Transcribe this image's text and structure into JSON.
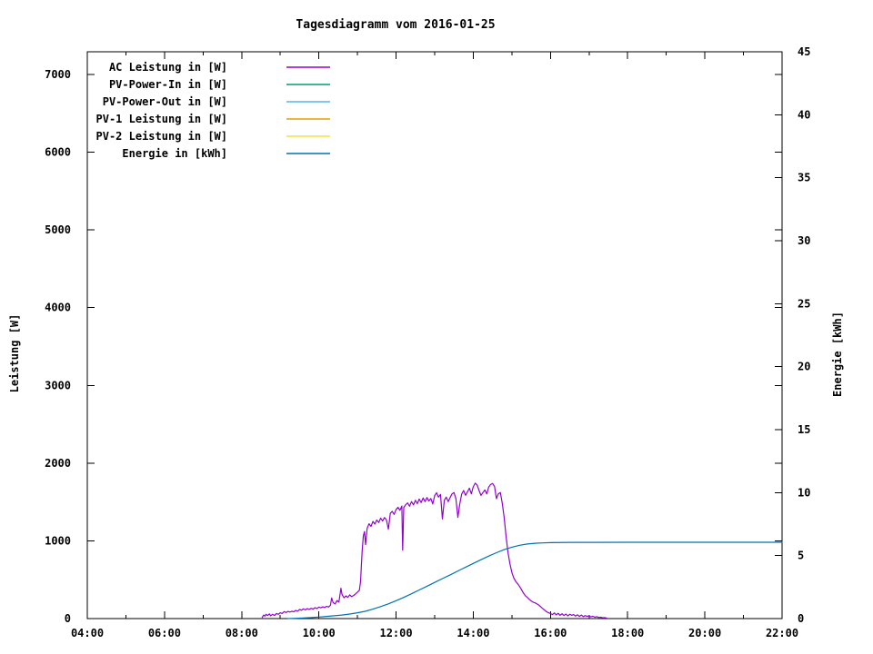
{
  "page": {
    "background": "#ffffff"
  },
  "chart_data": {
    "type": "line",
    "title": "Tagesdiagramm vom 2016-01-25",
    "grid": false,
    "legend_position": "top-left-inside",
    "x_axis": {
      "unit": "time-of-day",
      "range_hours": [
        4,
        22
      ],
      "minor_tick_every_hours": 1,
      "major_tick_every_hours": 2,
      "major_tick_labels": [
        "04:00",
        "06:00",
        "08:00",
        "10:00",
        "12:00",
        "14:00",
        "16:00",
        "18:00",
        "20:00",
        "22:00"
      ]
    },
    "y_axis_left": {
      "label": "Leistung [W]",
      "range": [
        0,
        7292
      ],
      "tick_values": [
        0,
        1000,
        2000,
        3000,
        4000,
        5000,
        6000,
        7000
      ]
    },
    "y_axis_right": {
      "label": "Energie [kWh]",
      "range": [
        0,
        45
      ],
      "tick_values": [
        0,
        5,
        10,
        15,
        20,
        25,
        30,
        35,
        40,
        45
      ]
    },
    "series": [
      {
        "name": "AC Leistung in [W]",
        "color": "#9400d3",
        "axis": "left",
        "points": [
          [
            8.53,
            15
          ],
          [
            8.57,
            45
          ],
          [
            8.6,
            30
          ],
          [
            8.63,
            55
          ],
          [
            8.67,
            40
          ],
          [
            8.72,
            60
          ],
          [
            8.75,
            35
          ],
          [
            8.8,
            55
          ],
          [
            8.85,
            40
          ],
          [
            8.9,
            65
          ],
          [
            8.95,
            55
          ],
          [
            9.0,
            75
          ],
          [
            9.05,
            65
          ],
          [
            9.1,
            90
          ],
          [
            9.15,
            78
          ],
          [
            9.2,
            92
          ],
          [
            9.25,
            84
          ],
          [
            9.3,
            95
          ],
          [
            9.35,
            88
          ],
          [
            9.4,
            105
          ],
          [
            9.45,
            95
          ],
          [
            9.5,
            118
          ],
          [
            9.55,
            108
          ],
          [
            9.6,
            125
          ],
          [
            9.65,
            112
          ],
          [
            9.7,
            128
          ],
          [
            9.75,
            118
          ],
          [
            9.8,
            132
          ],
          [
            9.85,
            122
          ],
          [
            9.9,
            140
          ],
          [
            9.95,
            128
          ],
          [
            10.0,
            148
          ],
          [
            10.05,
            138
          ],
          [
            10.1,
            152
          ],
          [
            10.15,
            143
          ],
          [
            10.2,
            158
          ],
          [
            10.25,
            148
          ],
          [
            10.3,
            172
          ],
          [
            10.33,
            265
          ],
          [
            10.37,
            205
          ],
          [
            10.42,
            188
          ],
          [
            10.47,
            232
          ],
          [
            10.52,
            212
          ],
          [
            10.57,
            390
          ],
          [
            10.6,
            310
          ],
          [
            10.65,
            268
          ],
          [
            10.7,
            292
          ],
          [
            10.75,
            272
          ],
          [
            10.8,
            305
          ],
          [
            10.85,
            282
          ],
          [
            10.9,
            298
          ],
          [
            10.95,
            318
          ],
          [
            11.0,
            340
          ],
          [
            11.05,
            365
          ],
          [
            11.08,
            480
          ],
          [
            11.12,
            860
          ],
          [
            11.15,
            1060
          ],
          [
            11.18,
            1120
          ],
          [
            11.21,
            950
          ],
          [
            11.25,
            1160
          ],
          [
            11.3,
            1220
          ],
          [
            11.35,
            1185
          ],
          [
            11.4,
            1250
          ],
          [
            11.45,
            1215
          ],
          [
            11.5,
            1268
          ],
          [
            11.55,
            1235
          ],
          [
            11.6,
            1292
          ],
          [
            11.65,
            1255
          ],
          [
            11.7,
            1300
          ],
          [
            11.75,
            1270
          ],
          [
            11.8,
            1150
          ],
          [
            11.85,
            1355
          ],
          [
            11.9,
            1380
          ],
          [
            11.95,
            1340
          ],
          [
            12.0,
            1405
          ],
          [
            12.05,
            1432
          ],
          [
            12.1,
            1392
          ],
          [
            12.15,
            1448
          ],
          [
            12.17,
            880
          ],
          [
            12.2,
            1430
          ],
          [
            12.25,
            1465
          ],
          [
            12.3,
            1488
          ],
          [
            12.35,
            1445
          ],
          [
            12.4,
            1505
          ],
          [
            12.45,
            1462
          ],
          [
            12.5,
            1522
          ],
          [
            12.55,
            1478
          ],
          [
            12.6,
            1538
          ],
          [
            12.65,
            1492
          ],
          [
            12.7,
            1552
          ],
          [
            12.75,
            1505
          ],
          [
            12.8,
            1558
          ],
          [
            12.85,
            1512
          ],
          [
            12.9,
            1545
          ],
          [
            12.95,
            1475
          ],
          [
            13.0,
            1582
          ],
          [
            13.05,
            1618
          ],
          [
            13.1,
            1562
          ],
          [
            13.15,
            1598
          ],
          [
            13.2,
            1282
          ],
          [
            13.25,
            1522
          ],
          [
            13.3,
            1562
          ],
          [
            13.35,
            1505
          ],
          [
            13.4,
            1558
          ],
          [
            13.45,
            1605
          ],
          [
            13.5,
            1622
          ],
          [
            13.55,
            1545
          ],
          [
            13.6,
            1302
          ],
          [
            13.65,
            1475
          ],
          [
            13.7,
            1602
          ],
          [
            13.75,
            1648
          ],
          [
            13.8,
            1585
          ],
          [
            13.85,
            1632
          ],
          [
            13.9,
            1678
          ],
          [
            13.95,
            1605
          ],
          [
            14.0,
            1695
          ],
          [
            14.05,
            1742
          ],
          [
            14.1,
            1718
          ],
          [
            14.15,
            1648
          ],
          [
            14.2,
            1585
          ],
          [
            14.25,
            1622
          ],
          [
            14.3,
            1655
          ],
          [
            14.35,
            1605
          ],
          [
            14.4,
            1692
          ],
          [
            14.45,
            1725
          ],
          [
            14.5,
            1738
          ],
          [
            14.55,
            1702
          ],
          [
            14.6,
            1542
          ],
          [
            14.65,
            1605
          ],
          [
            14.7,
            1622
          ],
          [
            14.75,
            1485
          ],
          [
            14.8,
            1302
          ],
          [
            14.85,
            1055
          ],
          [
            14.9,
            852
          ],
          [
            14.95,
            702
          ],
          [
            15.0,
            592
          ],
          [
            15.05,
            522
          ],
          [
            15.1,
            478
          ],
          [
            15.15,
            448
          ],
          [
            15.2,
            412
          ],
          [
            15.25,
            372
          ],
          [
            15.3,
            328
          ],
          [
            15.35,
            295
          ],
          [
            15.4,
            272
          ],
          [
            15.45,
            248
          ],
          [
            15.5,
            228
          ],
          [
            15.55,
            212
          ],
          [
            15.6,
            202
          ],
          [
            15.65,
            188
          ],
          [
            15.7,
            172
          ],
          [
            15.75,
            152
          ],
          [
            15.8,
            128
          ],
          [
            15.85,
            108
          ],
          [
            15.9,
            88
          ],
          [
            15.95,
            75
          ],
          [
            16.0,
            65
          ],
          [
            16.05,
            52
          ],
          [
            16.1,
            72
          ],
          [
            16.15,
            48
          ],
          [
            16.2,
            68
          ],
          [
            16.25,
            42
          ],
          [
            16.3,
            62
          ],
          [
            16.35,
            38
          ],
          [
            16.4,
            58
          ],
          [
            16.45,
            35
          ],
          [
            16.5,
            55
          ],
          [
            16.55,
            42
          ],
          [
            16.6,
            52
          ],
          [
            16.65,
            32
          ],
          [
            16.7,
            48
          ],
          [
            16.75,
            28
          ],
          [
            16.8,
            45
          ],
          [
            16.85,
            25
          ],
          [
            16.9,
            38
          ],
          [
            16.95,
            28
          ],
          [
            17.0,
            35
          ],
          [
            17.05,
            22
          ],
          [
            17.1,
            30
          ],
          [
            17.15,
            18
          ],
          [
            17.2,
            25
          ],
          [
            17.25,
            14
          ],
          [
            17.3,
            18
          ],
          [
            17.35,
            10
          ],
          [
            17.4,
            12
          ],
          [
            17.45,
            8
          ]
        ]
      },
      {
        "name": "PV-Power-In in [W]",
        "color": "#009e73",
        "axis": "left",
        "points": []
      },
      {
        "name": "PV-Power-Out in [W]",
        "color": "#56b4e9",
        "axis": "left",
        "points": []
      },
      {
        "name": "PV-1 Leistung in [W]",
        "color": "#e69f00",
        "axis": "left",
        "points": []
      },
      {
        "name": "PV-2 Leistung in [W]",
        "color": "#f0e442",
        "axis": "left",
        "points": []
      },
      {
        "name": "Energie in [kWh]",
        "color": "#0072b2",
        "axis": "right",
        "points": [
          [
            9.2,
            0.0
          ],
          [
            9.4,
            0.02
          ],
          [
            9.6,
            0.05
          ],
          [
            9.8,
            0.08
          ],
          [
            10.0,
            0.12
          ],
          [
            10.2,
            0.17
          ],
          [
            10.4,
            0.22
          ],
          [
            10.6,
            0.28
          ],
          [
            10.8,
            0.36
          ],
          [
            11.0,
            0.46
          ],
          [
            11.2,
            0.58
          ],
          [
            11.4,
            0.75
          ],
          [
            11.6,
            0.95
          ],
          [
            11.8,
            1.17
          ],
          [
            12.0,
            1.42
          ],
          [
            12.2,
            1.68
          ],
          [
            12.4,
            1.97
          ],
          [
            12.6,
            2.27
          ],
          [
            12.8,
            2.57
          ],
          [
            13.0,
            2.87
          ],
          [
            13.2,
            3.17
          ],
          [
            13.4,
            3.47
          ],
          [
            13.6,
            3.78
          ],
          [
            13.8,
            4.08
          ],
          [
            14.0,
            4.38
          ],
          [
            14.2,
            4.67
          ],
          [
            14.4,
            4.96
          ],
          [
            14.6,
            5.23
          ],
          [
            14.8,
            5.47
          ],
          [
            15.0,
            5.67
          ],
          [
            15.2,
            5.82
          ],
          [
            15.4,
            5.92
          ],
          [
            15.6,
            5.98
          ],
          [
            15.8,
            6.01
          ],
          [
            16.0,
            6.03
          ],
          [
            16.5,
            6.05
          ],
          [
            17.0,
            6.05
          ],
          [
            18.0,
            6.06
          ],
          [
            19.0,
            6.06
          ],
          [
            20.0,
            6.06
          ],
          [
            21.0,
            6.06
          ],
          [
            22.0,
            6.06
          ]
        ]
      }
    ]
  }
}
